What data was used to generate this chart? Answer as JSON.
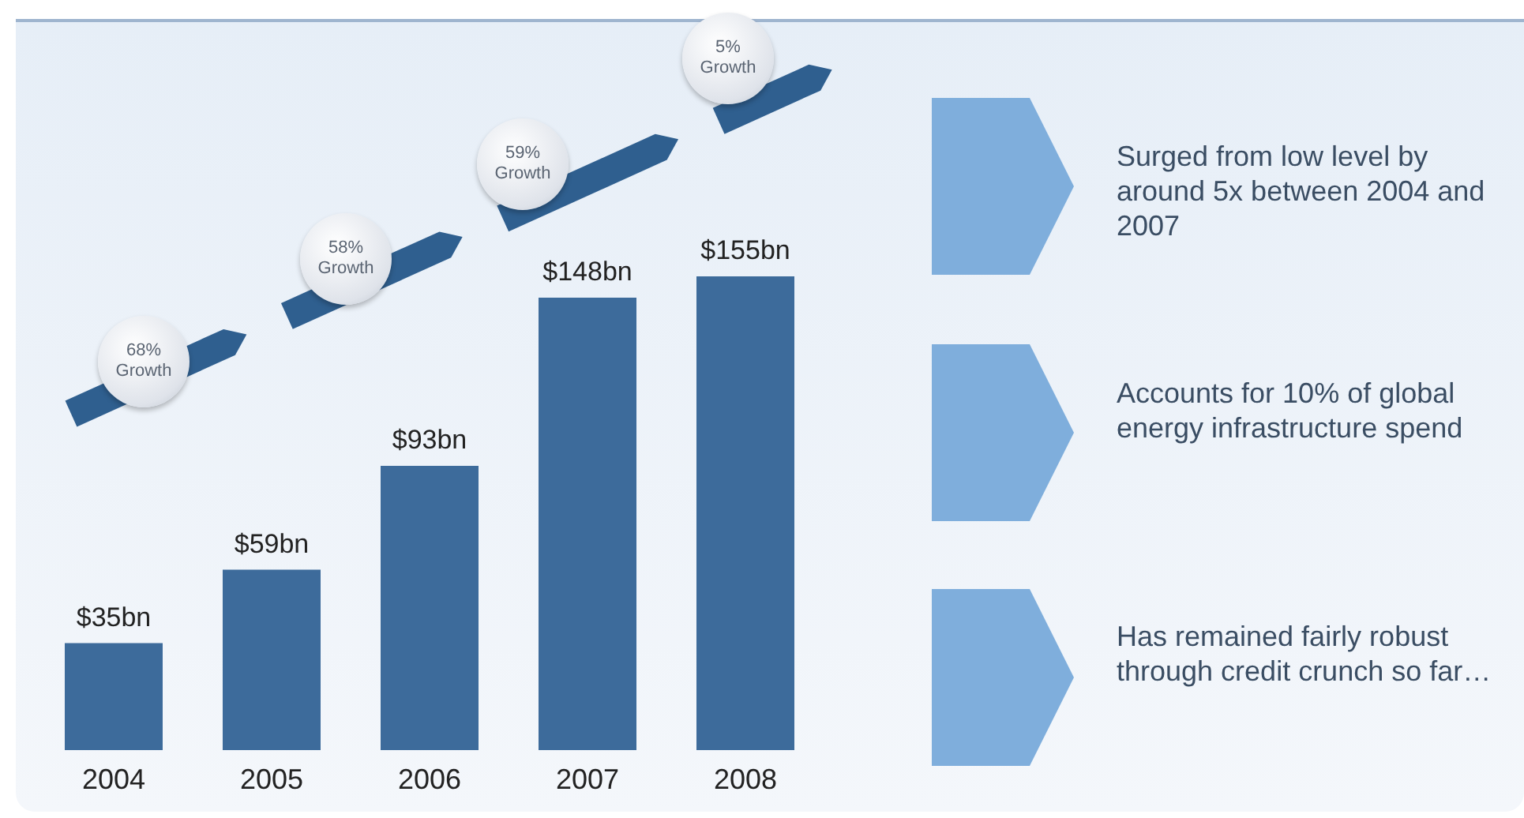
{
  "chart_data": {
    "type": "bar",
    "categories": [
      "2004",
      "2005",
      "2006",
      "2007",
      "2008"
    ],
    "values": [
      35,
      59,
      93,
      148,
      155
    ],
    "color": "#3d6b9b",
    "value_labels": [
      "$35bn",
      "$59bn",
      "$93bn",
      "$148bn",
      "$155bn"
    ],
    "grid": false,
    "annotations": [
      "68% Growth",
      "58% Growth",
      "59% Growth",
      "5% Growth",
      "Surged from low level by around 5x between 2004 and 2007",
      "Accounts for 10% of global energy infrastructure spend",
      "Has remained fairly robust through credit crunch so far…"
    ]
  }
}
